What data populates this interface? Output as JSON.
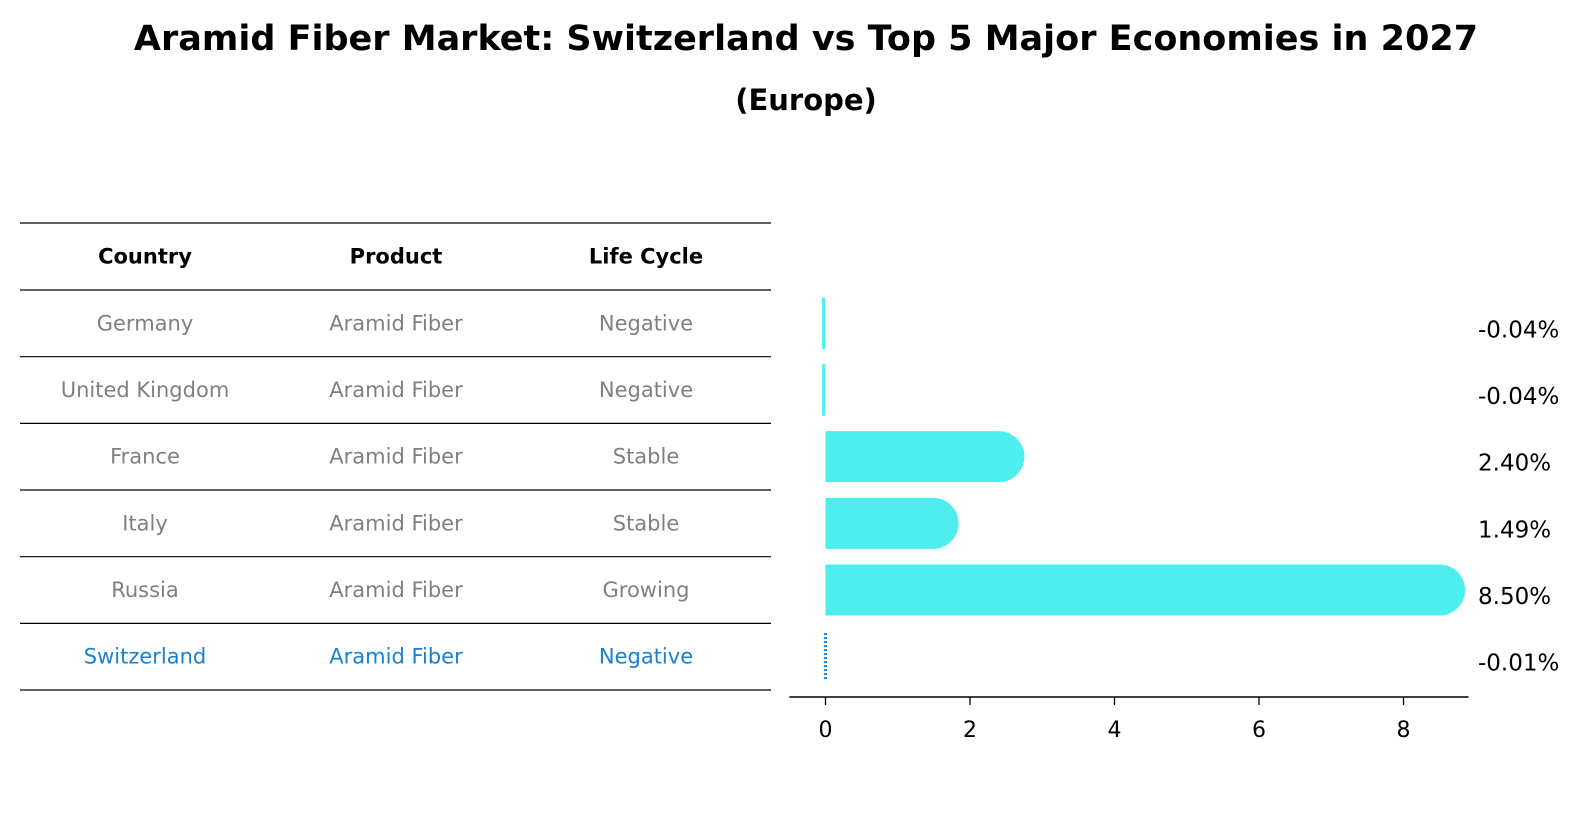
{
  "chart_data": {
    "type": "bar",
    "orientation": "horizontal",
    "title": "Aramid Fiber Market: Switzerland vs Top 5 Major Economies in 2027",
    "subtitle": "(Europe)",
    "table": {
      "headers": [
        "Country",
        "Product",
        "Life Cycle"
      ],
      "rows": [
        [
          "Germany",
          "Aramid Fiber",
          "Negative"
        ],
        [
          "United Kingdom",
          "Aramid Fiber",
          "Negative"
        ],
        [
          "France",
          "Aramid Fiber",
          "Stable"
        ],
        [
          "Italy",
          "Aramid Fiber",
          "Stable"
        ],
        [
          "Russia",
          "Aramid Fiber",
          "Growing"
        ],
        [
          "Switzerland",
          "Aramid Fiber",
          "Negative"
        ]
      ],
      "highlight_row": "Switzerland"
    },
    "categories": [
      "Germany",
      "United Kingdom",
      "France",
      "Italy",
      "Russia",
      "Switzerland"
    ],
    "values": [
      -0.04,
      -0.04,
      2.4,
      1.49,
      8.5,
      -0.01
    ],
    "value_labels": [
      "-0.04%",
      "-0.04%",
      "2.40%",
      "1.49%",
      "8.50%",
      "-0.01%"
    ],
    "xlim": [
      -0.5,
      8.9
    ],
    "xticks": [
      0,
      2,
      4,
      6,
      8
    ],
    "xlabel": "",
    "ylabel": "",
    "colors": {
      "bar": "#4EEEEE",
      "highlight": "#1A80D0",
      "muted_text": "#808080",
      "rule": "#000000"
    }
  }
}
